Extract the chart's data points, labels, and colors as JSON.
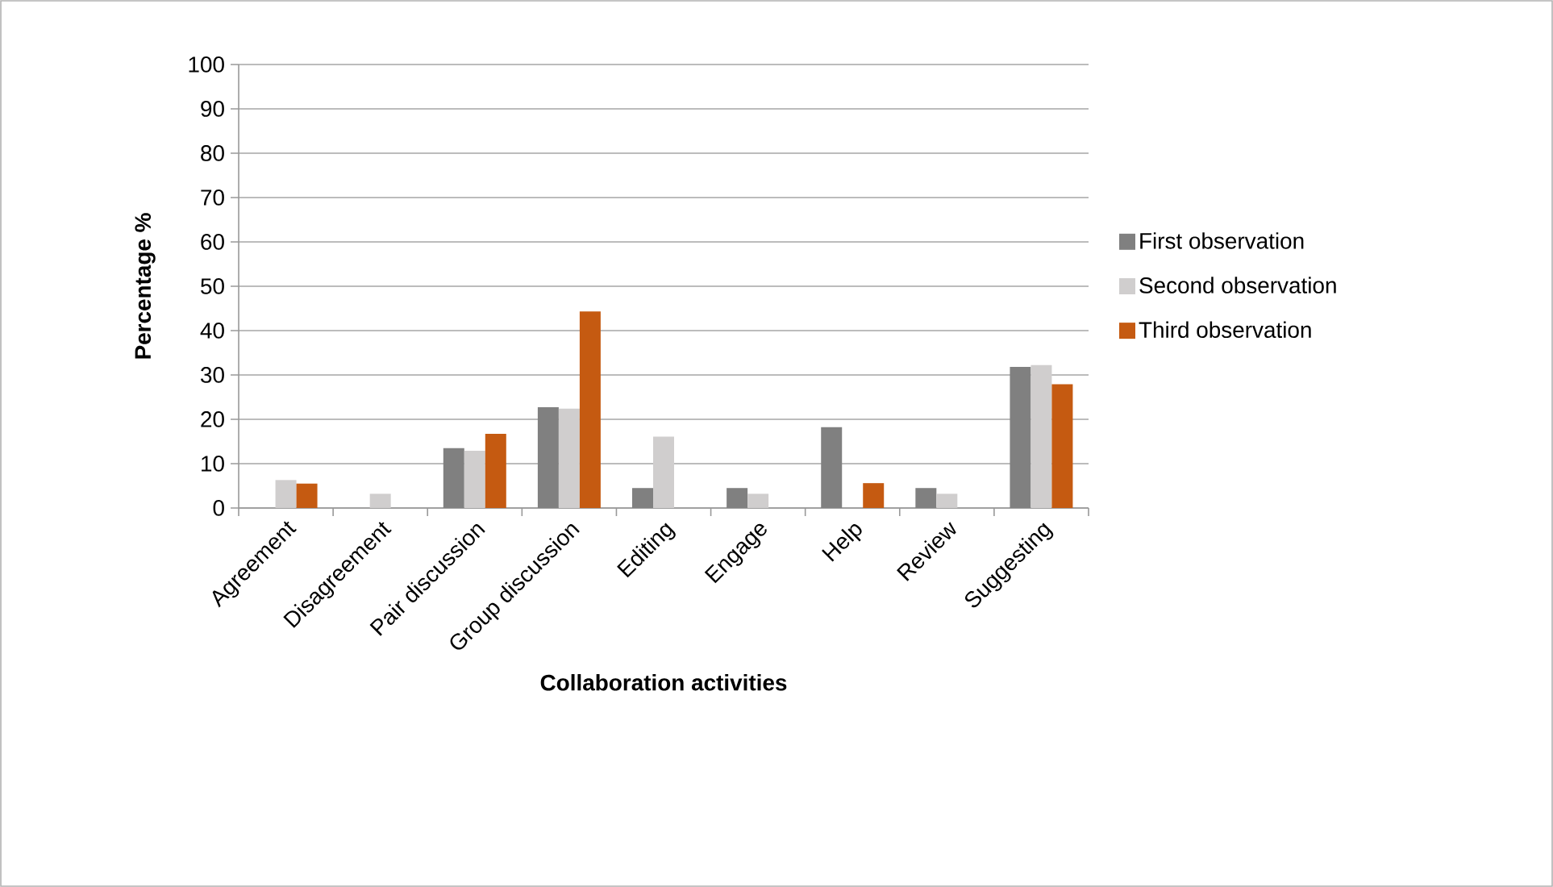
{
  "chart_data": {
    "type": "bar",
    "xlabel": "Collaboration activities",
    "ylabel": "Percentage %",
    "categories": [
      "Agreement",
      "Disagreement",
      "Pair discussion",
      "Group discussion",
      "Editing",
      "Engage",
      "Help",
      "Review",
      "Suggesting"
    ],
    "series": [
      {
        "name": "First observation",
        "color": "#808080",
        "values": [
          null,
          null,
          13.5,
          22.7,
          4.5,
          4.5,
          18.2,
          4.5,
          31.8
        ]
      },
      {
        "name": "Second observation",
        "color": "#d0cece",
        "values": [
          6.3,
          3.2,
          12.9,
          22.4,
          16.1,
          3.2,
          null,
          3.2,
          32.2
        ]
      },
      {
        "name": "Third observation",
        "color": "#c55a11",
        "values": [
          5.5,
          null,
          16.7,
          44.3,
          null,
          null,
          5.6,
          null,
          27.9
        ]
      }
    ],
    "ylim": [
      0,
      100
    ],
    "yticks": [
      0,
      10,
      20,
      30,
      40,
      50,
      60,
      70,
      80,
      90,
      100
    ],
    "grid": "y",
    "legend": "right"
  }
}
